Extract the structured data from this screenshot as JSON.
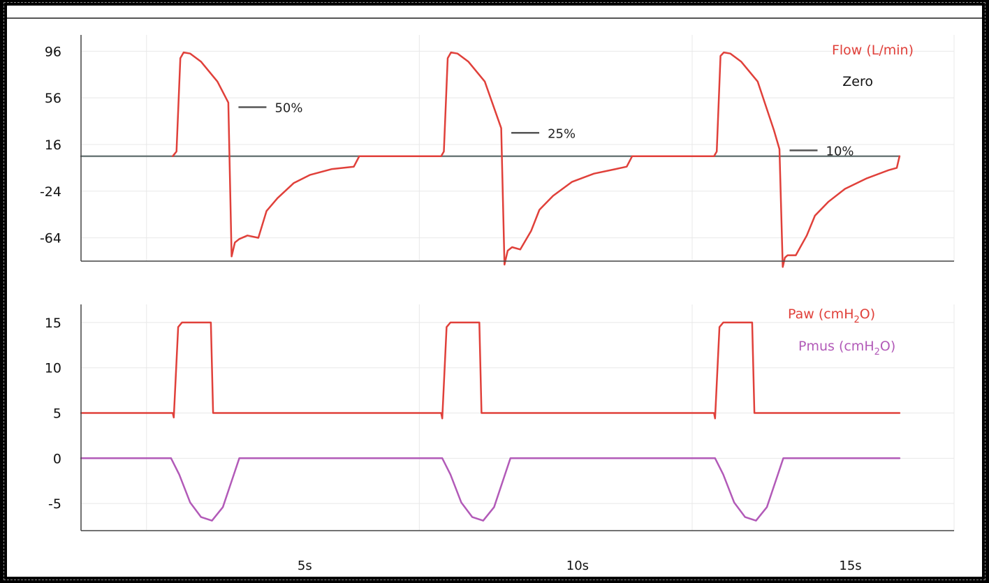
{
  "colors": {
    "flow": "#e0403a",
    "paw": "#e0403a",
    "pmus": "#b25ab8",
    "zero": "#6e7b7b",
    "grid": "#e8e8e8",
    "axis": "#444444"
  },
  "chart_data": [
    {
      "type": "line",
      "title": "",
      "xlabel": "",
      "ylabel": "",
      "xlim": [
        0,
        16
      ],
      "ylim": [
        -84,
        110
      ],
      "y_ticks": [
        "96",
        "56",
        "16",
        "-24",
        "-64"
      ],
      "y_tick_values": [
        96,
        56,
        16,
        -24,
        -64
      ],
      "grid": true,
      "legend": [
        "Flow (L/min)",
        "Zero"
      ],
      "legend_position": "top-right",
      "annotations": [
        {
          "text": "50%",
          "x": 3.5,
          "y": 48
        },
        {
          "text": "25%",
          "x": 8.5,
          "y": 26
        },
        {
          "text": "10%",
          "x": 13.6,
          "y": 11
        }
      ],
      "series": [
        {
          "name": "Flow (L/min)",
          "x": [
            1.68,
            1.75,
            1.82,
            1.88,
            2.0,
            2.2,
            2.5,
            2.7,
            2.76,
            2.82,
            2.9,
            3.05,
            3.25,
            3.4,
            3.6,
            3.9,
            4.2,
            4.6,
            5.0,
            5.1,
            6.6,
            6.65,
            6.72,
            6.78,
            6.9,
            7.1,
            7.4,
            7.7,
            7.76,
            7.82,
            7.9,
            8.05,
            8.25,
            8.4,
            8.65,
            9.0,
            9.4,
            9.8,
            10.0,
            10.1,
            11.6,
            11.65,
            11.72,
            11.78,
            11.9,
            12.1,
            12.4,
            12.7,
            12.8,
            12.86,
            12.9,
            12.95,
            13.1,
            13.3,
            13.45,
            13.7,
            14.0,
            14.4,
            14.8,
            14.95,
            15.0
          ],
          "y": [
            6,
            10,
            90,
            95,
            94,
            87,
            70,
            52,
            -80,
            -68,
            -65,
            -62,
            -64,
            -41,
            -30,
            -17,
            -10,
            -5,
            -3,
            6,
            6,
            10,
            90,
            95,
            94,
            87,
            70,
            30,
            -87,
            -75,
            -72,
            -74,
            -58,
            -40,
            -28,
            -16,
            -9,
            -5,
            -3,
            6,
            6,
            10,
            92,
            95,
            94,
            87,
            70,
            28,
            12,
            -89,
            -81,
            -79,
            -79,
            -62,
            -45,
            -33,
            -22,
            -13,
            -6,
            -4,
            6
          ]
        },
        {
          "name": "Zero",
          "x": [
            0,
            15.0
          ],
          "y": [
            6,
            6
          ]
        }
      ]
    },
    {
      "type": "line",
      "title": "",
      "xlabel": "",
      "ylabel": "",
      "xlim": [
        0,
        16
      ],
      "ylim": [
        -8,
        17
      ],
      "y_ticks": [
        "15",
        "10",
        "5",
        "0",
        "-5"
      ],
      "y_tick_values": [
        15,
        10,
        5,
        0,
        -5
      ],
      "x_ticks": [
        "5s",
        "10s",
        "15s"
      ],
      "x_tick_values": [
        4.1,
        9.1,
        14.1
      ],
      "grid": true,
      "legend": [
        "Paw (cmH",
        "2",
        "O)",
        "Pmus (cmH",
        "2",
        "O)"
      ],
      "legend_position": "top-right",
      "series": [
        {
          "name": "Paw (cmH2O)",
          "x": [
            0,
            1.68,
            1.7,
            1.78,
            1.85,
            2.38,
            2.42,
            6.6,
            6.62,
            6.7,
            6.77,
            7.3,
            7.34,
            11.6,
            11.62,
            11.7,
            11.77,
            12.3,
            12.34,
            15.0
          ],
          "y": [
            5,
            5,
            4.5,
            14.5,
            15,
            15,
            5,
            5,
            4.4,
            14.5,
            15,
            15,
            5,
            5,
            4.4,
            14.5,
            15,
            15,
            5,
            5
          ]
        },
        {
          "name": "Pmus (cmH2O)",
          "x": [
            0,
            1.65,
            1.8,
            2.0,
            2.2,
            2.4,
            2.6,
            2.8,
            2.9,
            6.62,
            6.77,
            6.97,
            7.17,
            7.37,
            7.57,
            7.77,
            7.87,
            11.62,
            11.77,
            11.97,
            12.17,
            12.37,
            12.57,
            12.77,
            12.87,
            15.0
          ],
          "y": [
            0,
            0,
            -1.8,
            -4.9,
            -6.5,
            -6.9,
            -5.4,
            -1.8,
            0,
            0,
            -1.8,
            -4.9,
            -6.5,
            -6.9,
            -5.4,
            -1.8,
            0,
            0,
            -1.8,
            -4.9,
            -6.5,
            -6.9,
            -5.4,
            -1.8,
            0,
            0
          ]
        }
      ]
    }
  ]
}
